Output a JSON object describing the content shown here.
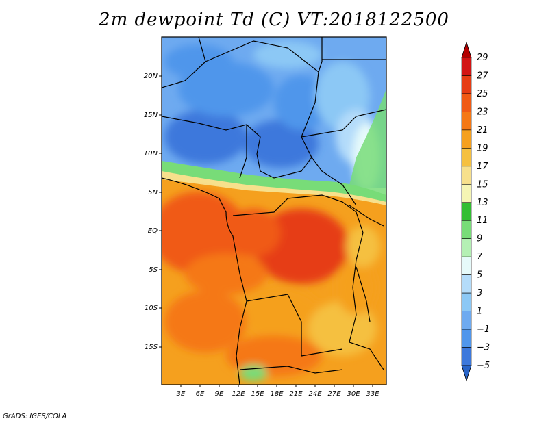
{
  "title": "2m dewpoint Td (C) VT:2018122500",
  "footer": "GrADS: IGES/COLA",
  "map": {
    "region": "Central Africa",
    "lat_labels": [
      "20N",
      "15N",
      "10N",
      "5N",
      "EQ",
      "5S",
      "10S",
      "15S"
    ],
    "lon_labels": [
      "3E",
      "6E",
      "9E",
      "12E",
      "15E",
      "18E",
      "21E",
      "24E",
      "27E",
      "30E",
      "33E"
    ]
  },
  "colorbar": {
    "levels": [
      "29",
      "27",
      "25",
      "23",
      "21",
      "19",
      "17",
      "15",
      "13",
      "11",
      "9",
      "7",
      "5",
      "3",
      "1",
      "-1",
      "-3",
      "-5"
    ],
    "colors": [
      "#b40000",
      "#d21414",
      "#e63c14",
      "#f05a14",
      "#f57814",
      "#f5a01e",
      "#f5c040",
      "#f7e08c",
      "#f5f5b4",
      "#32be32",
      "#78dc78",
      "#b4f0b4",
      "#e6fafa",
      "#b4dcfa",
      "#8cc8f5",
      "#6eaaf0",
      "#5096eb",
      "#3c78dc",
      "#2864c8"
    ]
  }
}
